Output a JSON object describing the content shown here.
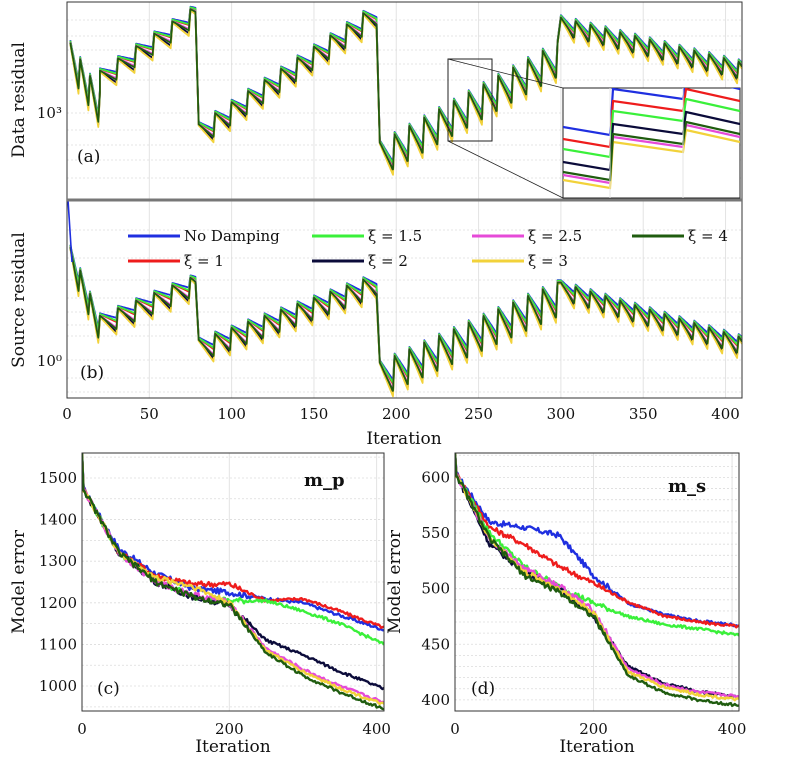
{
  "colors": {
    "No Damping": "#1f2fe0",
    "xi1": "#ee1c1c",
    "xi1.5": "#3af03a",
    "xi2": "#0b0b3a",
    "xi2.5": "#e64ad8",
    "xi3": "#f2d23a",
    "xi4": "#1f5c0f"
  },
  "legend": [
    {
      "key": "No Damping",
      "label": "No Damping"
    },
    {
      "key": "xi1.5",
      "label": "ξ = 1.5"
    },
    {
      "key": "xi2.5",
      "label": "ξ = 2.5"
    },
    {
      "key": "xi4",
      "label": "ξ = 4"
    },
    {
      "key": "xi1",
      "label": "ξ = 1"
    },
    {
      "key": "xi2",
      "label": "ξ = 2"
    },
    {
      "key": "xi3",
      "label": "ξ = 3"
    }
  ],
  "chart_data": [
    {
      "id": "a",
      "type": "line",
      "panel_label": "(a)",
      "ylabel": "Data residual",
      "yscale": "log",
      "ytick_labels": [
        "10³"
      ],
      "xlim": [
        0,
        410
      ],
      "inset": "zoom of iterations ~230-260",
      "series": [
        "No Damping",
        "ξ = 1",
        "ξ = 1.5",
        "ξ = 2",
        "ξ = 2.5",
        "ξ = 3",
        "ξ = 4"
      ]
    },
    {
      "id": "b",
      "type": "line",
      "panel_label": "(b)",
      "ylabel": "Source residual",
      "xlabel": "Iteration",
      "yscale": "log",
      "ytick_labels": [
        "10⁰"
      ],
      "xlim": [
        0,
        410
      ],
      "xticks": [
        0,
        50,
        100,
        150,
        200,
        250,
        300,
        350,
        400
      ],
      "series": [
        "No Damping",
        "ξ = 1",
        "ξ = 1.5",
        "ξ = 2",
        "ξ = 2.5",
        "ξ = 3",
        "ξ = 4"
      ]
    },
    {
      "id": "c",
      "type": "line",
      "panel_label": "(c)",
      "title": "m_p",
      "ylabel": "Model error",
      "xlabel": "Iteration",
      "xlim": [
        0,
        410
      ],
      "ylim": [
        940,
        1560
      ],
      "xticks": [
        0,
        200,
        400
      ],
      "yticks": [
        1000,
        1100,
        1200,
        1300,
        1400,
        1500
      ],
      "series": [
        {
          "name": "No Damping",
          "x": [
            0,
            50,
            100,
            150,
            200,
            250,
            300,
            350,
            410
          ],
          "values": [
            1480,
            1330,
            1270,
            1235,
            1225,
            1210,
            1200,
            1170,
            1135
          ]
        },
        {
          "name": "ξ = 1",
          "x": [
            0,
            50,
            100,
            150,
            200,
            250,
            300,
            350,
            410
          ],
          "values": [
            1480,
            1320,
            1265,
            1245,
            1245,
            1205,
            1210,
            1180,
            1140
          ]
        },
        {
          "name": "ξ = 1.5",
          "x": [
            0,
            50,
            100,
            150,
            200,
            250,
            300,
            350,
            410
          ],
          "values": [
            1480,
            1320,
            1255,
            1215,
            1205,
            1205,
            1180,
            1150,
            1100
          ]
        },
        {
          "name": "ξ = 2",
          "x": [
            0,
            50,
            100,
            150,
            200,
            250,
            300,
            350,
            410
          ],
          "values": [
            1480,
            1320,
            1250,
            1215,
            1195,
            1110,
            1075,
            1035,
            993
          ]
        },
        {
          "name": "ξ = 2.5",
          "x": [
            0,
            50,
            100,
            150,
            200,
            250,
            300,
            350,
            410
          ],
          "values": [
            1480,
            1320,
            1250,
            1220,
            1200,
            1090,
            1040,
            1000,
            960
          ]
        },
        {
          "name": "ξ = 3",
          "x": [
            0,
            50,
            100,
            150,
            200,
            250,
            300,
            350,
            410
          ],
          "values": [
            1480,
            1320,
            1260,
            1240,
            1200,
            1085,
            1035,
            995,
            955
          ]
        },
        {
          "name": "ξ = 4",
          "x": [
            0,
            50,
            100,
            150,
            200,
            250,
            300,
            350,
            410
          ],
          "values": [
            1480,
            1320,
            1250,
            1215,
            1195,
            1080,
            1025,
            985,
            945
          ]
        }
      ]
    },
    {
      "id": "d",
      "type": "line",
      "panel_label": "(d)",
      "title": "m_s",
      "ylabel": "Model error",
      "xlabel": "Iteration",
      "xlim": [
        0,
        410
      ],
      "ylim": [
        390,
        622
      ],
      "xticks": [
        0,
        200,
        400
      ],
      "yticks": [
        400,
        450,
        500,
        550,
        600
      ],
      "series": [
        {
          "name": "No Damping",
          "x": [
            0,
            50,
            100,
            150,
            200,
            250,
            300,
            350,
            410
          ],
          "values": [
            605,
            560,
            555,
            548,
            512,
            487,
            477,
            471,
            467
          ]
        },
        {
          "name": "ξ = 1",
          "x": [
            0,
            50,
            100,
            150,
            200,
            250,
            300,
            350,
            410
          ],
          "values": [
            605,
            555,
            540,
            520,
            505,
            488,
            476,
            470,
            466
          ]
        },
        {
          "name": "ξ = 1.5",
          "x": [
            0,
            50,
            100,
            150,
            200,
            250,
            300,
            350,
            410
          ],
          "values": [
            605,
            550,
            520,
            502,
            487,
            475,
            468,
            464,
            458
          ]
        },
        {
          "name": "ξ = 2",
          "x": [
            0,
            50,
            100,
            150,
            200,
            250,
            300,
            350,
            410
          ],
          "values": [
            605,
            540,
            515,
            500,
            475,
            430,
            415,
            408,
            402
          ]
        },
        {
          "name": "ξ = 2.5",
          "x": [
            0,
            50,
            100,
            150,
            200,
            250,
            300,
            350,
            410
          ],
          "values": [
            605,
            545,
            518,
            503,
            480,
            428,
            414,
            407,
            403
          ]
        },
        {
          "name": "ξ = 3",
          "x": [
            0,
            50,
            100,
            150,
            200,
            250,
            300,
            350,
            410
          ],
          "values": [
            605,
            545,
            515,
            500,
            478,
            425,
            412,
            405,
            400
          ]
        },
        {
          "name": "ξ = 4",
          "x": [
            0,
            50,
            100,
            150,
            200,
            250,
            300,
            350,
            410
          ],
          "values": [
            605,
            545,
            512,
            497,
            475,
            422,
            407,
            400,
            395
          ]
        }
      ]
    }
  ]
}
